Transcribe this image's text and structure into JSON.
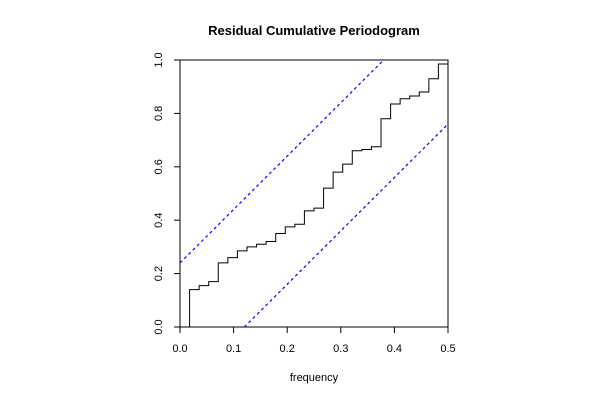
{
  "chart_data": {
    "type": "line",
    "title": "Residual Cumulative Periodogram",
    "xlabel": "frequency",
    "ylabel": "",
    "xlim": [
      0,
      0.5
    ],
    "ylim": [
      0,
      1
    ],
    "x_ticks": [
      "0.0",
      "0.1",
      "0.2",
      "0.3",
      "0.4",
      "0.5"
    ],
    "y_ticks": [
      "0.0",
      "0.2",
      "0.4",
      "0.6",
      "0.8",
      "1.0"
    ],
    "grid": false,
    "legend": "none",
    "series": [
      {
        "style": "step",
        "color": "#000000",
        "x": [
          0.0,
          0.0179,
          0.0357,
          0.0536,
          0.0714,
          0.0893,
          0.1071,
          0.125,
          0.1429,
          0.1607,
          0.1786,
          0.1964,
          0.2143,
          0.2321,
          0.25,
          0.2679,
          0.2857,
          0.3036,
          0.3214,
          0.3393,
          0.3571,
          0.375,
          0.3929,
          0.4107,
          0.4286,
          0.4464,
          0.4643,
          0.4821,
          0.5
        ],
        "y": [
          0.0,
          0.14,
          0.155,
          0.17,
          0.24,
          0.26,
          0.285,
          0.3,
          0.31,
          0.32,
          0.35,
          0.375,
          0.385,
          0.435,
          0.445,
          0.52,
          0.58,
          0.61,
          0.66,
          0.665,
          0.675,
          0.78,
          0.835,
          0.855,
          0.865,
          0.88,
          0.93,
          0.985,
          0.995
        ]
      },
      {
        "style": "dashed",
        "color": "#0000ff",
        "x": [
          0.0,
          0.38
        ],
        "y": [
          0.24,
          1.0
        ]
      },
      {
        "style": "dashed",
        "color": "#0000ff",
        "x": [
          0.12,
          0.5
        ],
        "y": [
          0.0,
          0.76
        ]
      }
    ]
  }
}
